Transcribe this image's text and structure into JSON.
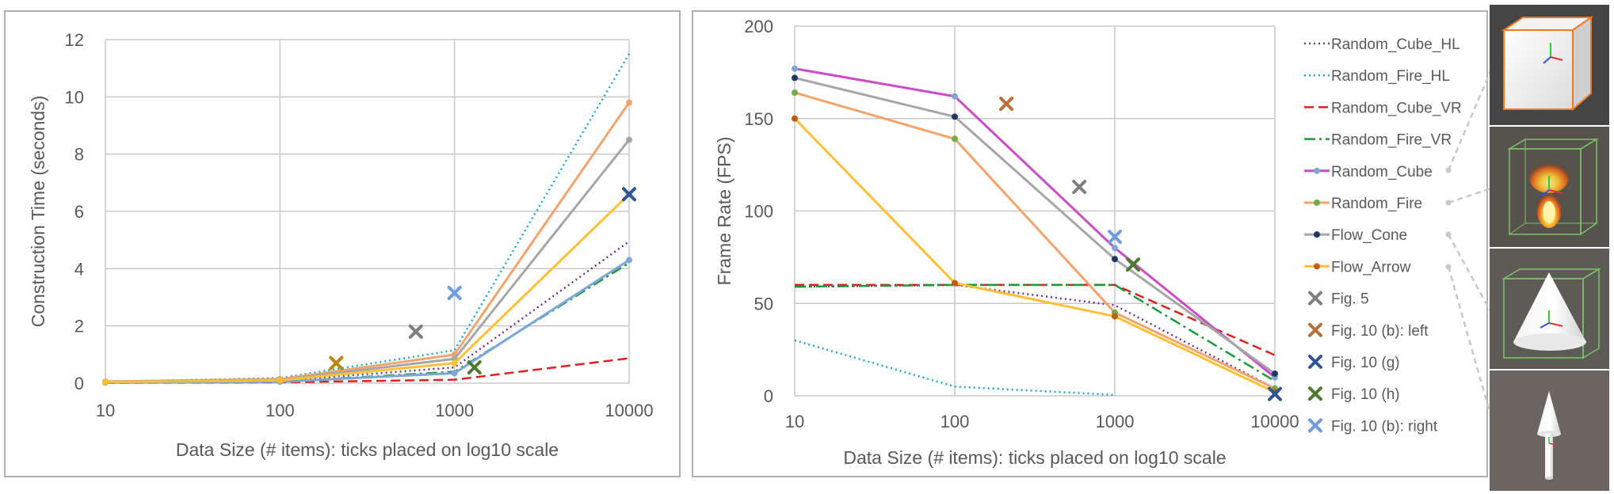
{
  "chart_data": [
    {
      "type": "line",
      "xscale": "log",
      "xlabel": "Data Size (# items): ticks placed on log10 scale",
      "ylabel": "Construction Time (seconds)",
      "x_ticks": [
        10,
        100,
        1000,
        10000
      ],
      "x_tick_labels": [
        "10",
        "100",
        "1000",
        "10000"
      ],
      "y_ticks": [
        0,
        2,
        4,
        6,
        8,
        10,
        12
      ],
      "y_tick_labels": [
        "0",
        "2",
        "4",
        "6",
        "8",
        "10",
        "12"
      ],
      "ylim": [
        0,
        12
      ],
      "grid": true,
      "x": [
        10,
        100,
        1000,
        10000
      ],
      "series": [
        {
          "name": "Random_Cube_HL",
          "values": [
            0.03,
            0.08,
            0.55,
            4.95
          ],
          "color": "#7030a0",
          "dash": "dotted",
          "marker": false
        },
        {
          "name": "Random_Fire_HL",
          "values": [
            0.05,
            0.18,
            1.15,
            11.5
          ],
          "color": "#19a8d8",
          "dash": "dotted",
          "marker": false
        },
        {
          "name": "Random_Cube_VR",
          "values": [
            0.01,
            0.03,
            0.12,
            0.87
          ],
          "color": "#e02020",
          "dash": "dashed",
          "marker": false
        },
        {
          "name": "Random_Fire_VR",
          "values": [
            0.02,
            0.05,
            0.4,
            4.2
          ],
          "color": "#1a9a3a",
          "dash": "dashdot",
          "marker": false
        },
        {
          "name": "Random_Cube",
          "values": [
            0.02,
            0.05,
            0.35,
            4.3
          ],
          "color": "#7da7d9",
          "dash": "solid",
          "marker": true
        },
        {
          "name": "Random_Fire",
          "values": [
            0.06,
            0.14,
            1.0,
            9.8
          ],
          "color": "#f4a46a",
          "dash": "solid",
          "marker": true
        },
        {
          "name": "Flow_Cone",
          "values": [
            0.05,
            0.12,
            0.85,
            8.5
          ],
          "color": "#a6a6a6",
          "dash": "solid",
          "marker": true
        },
        {
          "name": "Flow_Arrow",
          "values": [
            0.04,
            0.1,
            0.7,
            6.6
          ],
          "color": "#ffbf33",
          "dash": "solid",
          "marker": true
        }
      ],
      "highlight_points": [
        {
          "name": "Fig. 5",
          "x": 600,
          "y": 1.8,
          "color": "#7f7f7f"
        },
        {
          "name": "Fig. 10 (b): left",
          "x": 210,
          "y": 0.7,
          "color": "#b8860b"
        },
        {
          "name": "Fig. 10 (g)",
          "x": 10000,
          "y": 6.6,
          "color": "#2f5597"
        },
        {
          "name": "Fig. 10 (h)",
          "x": 1300,
          "y": 0.55,
          "color": "#4e7a32"
        },
        {
          "name": "Fig. 10 (b): right",
          "x": 1000,
          "y": 3.15,
          "color": "#6f9be0"
        }
      ]
    },
    {
      "type": "line",
      "xscale": "log",
      "xlabel": "Data Size (# items): ticks placed on log10 scale",
      "ylabel": "Frame Rate (FPS)",
      "x_ticks": [
        10,
        100,
        1000,
        10000
      ],
      "x_tick_labels": [
        "10",
        "100",
        "1000",
        "10000"
      ],
      "y_ticks": [
        0,
        50,
        100,
        150,
        200
      ],
      "y_tick_labels": [
        "0",
        "50",
        "100",
        "150",
        "200"
      ],
      "ylim": [
        0,
        200
      ],
      "grid": true,
      "x": [
        10,
        100,
        1000,
        10000
      ],
      "series": [
        {
          "name": "Random_Cube_HL",
          "values": [
            59,
            60,
            49,
            4
          ],
          "color": "#7030a0",
          "dash": "dotted",
          "marker": false
        },
        {
          "name": "Random_Fire_HL",
          "values": [
            30,
            5,
            0.5,
            null
          ],
          "color": "#19a8d8",
          "dash": "dotted",
          "marker": false
        },
        {
          "name": "Random_Cube_VR",
          "values": [
            60,
            60,
            60,
            22
          ],
          "color": "#e02020",
          "dash": "dashed",
          "marker": false
        },
        {
          "name": "Random_Fire_VR",
          "values": [
            59,
            60,
            60,
            8
          ],
          "color": "#1a9a3a",
          "dash": "dashdot",
          "marker": false
        },
        {
          "name": "Random_Cube",
          "values": [
            177,
            162,
            80,
            10
          ],
          "color": "#cc4cc8",
          "dash": "solid",
          "marker": true
        },
        {
          "name": "Random_Fire",
          "values": [
            164,
            139,
            45,
            4
          ],
          "color": "#f4a46a",
          "dash": "solid",
          "marker": true
        },
        {
          "name": "Flow_Cone",
          "values": [
            172,
            151,
            74,
            12
          ],
          "color": "#a6a6a6",
          "dash": "solid",
          "marker": true
        },
        {
          "name": "Flow_Arrow",
          "values": [
            150,
            61,
            43,
            2
          ],
          "color": "#ffbf33",
          "dash": "solid",
          "marker": true
        }
      ],
      "marker_colors": {
        "Random_Cube": "#7da7d9",
        "Random_Fire": "#70ad47",
        "Flow_Cone": "#1f3864",
        "Flow_Arrow": "#c55a11"
      },
      "highlight_points": [
        {
          "name": "Fig. 5",
          "x": 600,
          "y": 113,
          "color": "#7f7f7f"
        },
        {
          "name": "Fig. 10 (b): left",
          "x": 210,
          "y": 158,
          "color": "#b8703a"
        },
        {
          "name": "Fig. 10 (g)",
          "x": 10000,
          "y": 1,
          "color": "#2f5597"
        },
        {
          "name": "Fig. 10 (h)",
          "x": 1300,
          "y": 71,
          "color": "#4e7a32"
        },
        {
          "name": "Fig. 10 (b): right",
          "x": 1000,
          "y": 86,
          "color": "#6f9be0"
        }
      ]
    }
  ],
  "legend": {
    "placement": "right",
    "entries": [
      {
        "label": "Random_Cube_HL",
        "color": "#7030a0",
        "style": "dotted"
      },
      {
        "label": "Random_Fire_HL",
        "color": "#19a8d8",
        "style": "dotted"
      },
      {
        "label": "Random_Cube_VR",
        "color": "#e02020",
        "style": "dashed"
      },
      {
        "label": "Random_Fire_VR",
        "color": "#1a9a3a",
        "style": "dashdot"
      },
      {
        "label": "Random_Cube",
        "color": "#cc4cc8",
        "style": "line-marker",
        "marker_color": "#7da7d9"
      },
      {
        "label": "Random_Fire",
        "color": "#f4a46a",
        "style": "line-marker",
        "marker_color": "#70ad47"
      },
      {
        "label": "Flow_Cone",
        "color": "#a6a6a6",
        "style": "line-marker",
        "marker_color": "#1f3864"
      },
      {
        "label": "Flow_Arrow",
        "color": "#ffbf33",
        "style": "line-marker",
        "marker_color": "#c55a11"
      },
      {
        "label": "Fig. 5",
        "color": "#7f7f7f",
        "style": "x"
      },
      {
        "label": "Fig. 10 (b): left",
        "color": "#b8703a",
        "style": "x"
      },
      {
        "label": "Fig. 10 (g)",
        "color": "#2f5597",
        "style": "x"
      },
      {
        "label": "Fig. 10 (h)",
        "color": "#4e7a32",
        "style": "x"
      },
      {
        "label": "Fig. 10 (b): right",
        "color": "#6f9be0",
        "style": "x"
      }
    ]
  },
  "thumbnails": [
    {
      "depicts": "white-cube-icon",
      "connects_to": "Random_Cube"
    },
    {
      "depicts": "fire-particles-in-box-icon",
      "connects_to": "Random_Fire"
    },
    {
      "depicts": "white-cone-icon",
      "connects_to": "Flow_Cone"
    },
    {
      "depicts": "white-arrow-icon",
      "connects_to": "Flow_Arrow"
    }
  ]
}
